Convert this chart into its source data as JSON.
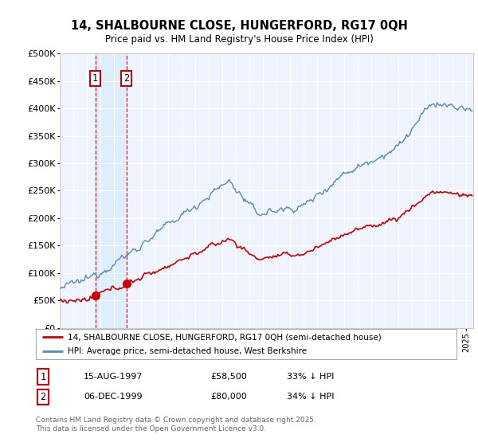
{
  "title": "14, SHALBOURNE CLOSE, HUNGERFORD, RG17 0QH",
  "subtitle": "Price paid vs. HM Land Registry's House Price Index (HPI)",
  "legend_entry1": "14, SHALBOURNE CLOSE, HUNGERFORD, RG17 0QH (semi-detached house)",
  "legend_entry2": "HPI: Average price, semi-detached house, West Berkshire",
  "purchase1_date": "15-AUG-1997",
  "purchase1_price": "£58,500",
  "purchase1_hpi": "33% ↓ HPI",
  "purchase1_year": 1997.62,
  "purchase1_value": 58500,
  "purchase2_date": "06-DEC-1999",
  "purchase2_price": "£80,000",
  "purchase2_hpi": "34% ↓ HPI",
  "purchase2_year": 1999.92,
  "purchase2_value": 80000,
  "footer": "Contains HM Land Registry data © Crown copyright and database right 2025.\nThis data is licensed under the Open Government Licence v3.0.",
  "price_color": "#cc0000",
  "hpi_color": "#5588bb",
  "hpi_fill_color": "#ddeeff",
  "background_color": "#f0f4ff",
  "highlight_color": "#ddeeff",
  "ylim": [
    0,
    500000
  ],
  "xlim_start": 1995.0,
  "xlim_end": 2025.5
}
